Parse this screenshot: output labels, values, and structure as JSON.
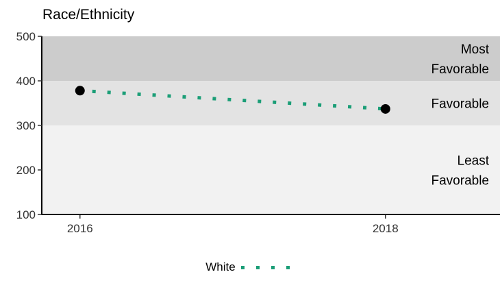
{
  "chart_data": {
    "type": "line",
    "title": "Race/Ethnicity",
    "xlabel": "",
    "ylabel": "",
    "x_ticks": [
      "2016",
      "2018"
    ],
    "y_ticks": [
      100,
      200,
      300,
      400,
      500
    ],
    "ylim": [
      100,
      500
    ],
    "xlim": [
      2015.75,
      2018.75
    ],
    "grid": false,
    "bands": [
      {
        "label_lines": [
          "Least",
          "Favorable"
        ],
        "from": 100,
        "to": 300,
        "color": "#f2f2f2"
      },
      {
        "label_lines": [
          "Favorable"
        ],
        "from": 300,
        "to": 400,
        "color": "#e3e3e3"
      },
      {
        "label_lines": [
          "Most",
          "Favorable"
        ],
        "from": 400,
        "to": 500,
        "color": "#cccccc"
      }
    ],
    "series": [
      {
        "name": "White",
        "color": "#1b9e77",
        "style": "dotted",
        "x": [
          2016,
          2018
        ],
        "y": [
          378,
          337
        ]
      }
    ],
    "legend_position": "bottom"
  }
}
